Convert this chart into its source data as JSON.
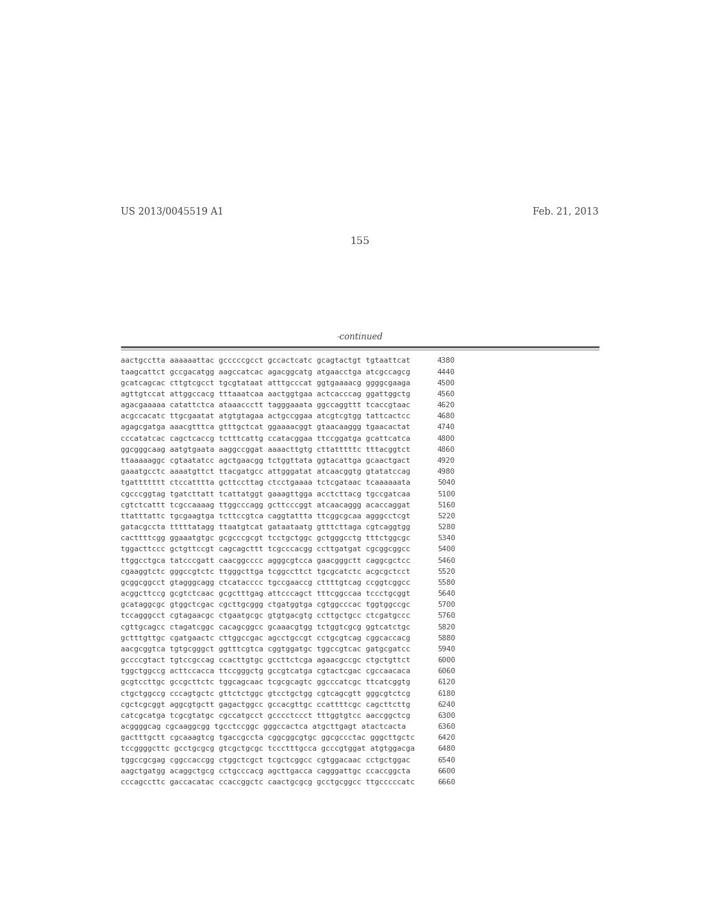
{
  "header_left": "US 2013/0045519 A1",
  "header_right": "Feb. 21, 2013",
  "page_number": "155",
  "continued_label": "-continued",
  "background_color": "#ffffff",
  "text_color": "#444444",
  "sequence_lines": [
    [
      "aactgcctta",
      "aaaaaattac",
      "gcccccgcct",
      "gccactcatc",
      "gcagtactgt",
      "tgtaattcat",
      "4380"
    ],
    [
      "taagcattct",
      "gccgacatgg",
      "aagccatcac",
      "agacggcatg",
      "atgaacctga",
      "atcgccagcg",
      "4440"
    ],
    [
      "gcatcagcac",
      "cttgtcgcct",
      "tgcgtataat",
      "atttgcccat",
      "ggtgaaaacg",
      "ggggcgaaga",
      "4500"
    ],
    [
      "agttgtccat",
      "attggccacg",
      "tttaaatcaa",
      "aactggtgaa",
      "actcacccag",
      "ggattggctg",
      "4560"
    ],
    [
      "agacgaaaaa",
      "catattctca",
      "ataaaccctt",
      "tagggaaata",
      "ggccaggttt",
      "tcaccgtaac",
      "4620"
    ],
    [
      "acgccacatc",
      "ttgcgaatat",
      "atgtgtagaa",
      "actgccggaa",
      "atcgtcgtgg",
      "tattcactcc",
      "4680"
    ],
    [
      "agagcgatga",
      "aaacgtttca",
      "gtttgctcat",
      "ggaaaacggt",
      "gtaacaaggg",
      "tgaacactat",
      "4740"
    ],
    [
      "cccatatcac",
      "cagctcaccg",
      "tctttcattg",
      "ccatacggaa",
      "ttccggatga",
      "gcattcatca",
      "4800"
    ],
    [
      "ggcgggcaag",
      "aatgtgaata",
      "aaggccggat",
      "aaaacttgtg",
      "cttatttttc",
      "tttacggtct",
      "4860"
    ],
    [
      "ttaaaaaggc",
      "cgtaatatcc",
      "agctgaacgg",
      "tctggttata",
      "ggtacattga",
      "gcaactgact",
      "4920"
    ],
    [
      "gaaatgcctc",
      "aaaatgttct",
      "ttacgatgcc",
      "attgggatat",
      "atcaacggtg",
      "gtatatccag",
      "4980"
    ],
    [
      "tgattttttt",
      "ctccatttta",
      "gcttccttag",
      "ctcctgaaaa",
      "tctcgataac",
      "tcaaaaaata",
      "5040"
    ],
    [
      "cgcccggtag",
      "tgatcttatt",
      "tcattatggt",
      "gaaagttgga",
      "acctcttacg",
      "tgccgatcaa",
      "5100"
    ],
    [
      "cgtctcattt",
      "tcgccaaaag",
      "ttggcccagg",
      "gcttcccggt",
      "atcaacaggg",
      "acaccaggat",
      "5160"
    ],
    [
      "ttatttattc",
      "tgcgaagtga",
      "tcttccgtca",
      "caggtattta",
      "ttcggcgcaa",
      "agggcctcgt",
      "5220"
    ],
    [
      "gatacgccta",
      "tttttatagg",
      "ttaatgtcat",
      "gataataatg",
      "gtttcttaga",
      "cgtcaggtgg",
      "5280"
    ],
    [
      "cacttttcgg",
      "ggaaatgtgc",
      "gcgcccgcgt",
      "tcctgctggc",
      "gctgggcctg",
      "tttctggcgc",
      "5340"
    ],
    [
      "tggacttccc",
      "gctgttccgt",
      "cagcagcttt",
      "tcgcccacgg",
      "ccttgatgat",
      "cgcggcggcc",
      "5400"
    ],
    [
      "ttggcctgca",
      "tatcccgatt",
      "caacggcccc",
      "agggcgtcca",
      "gaacgggctt",
      "caggcgctcc",
      "5460"
    ],
    [
      "cgaaggtctc",
      "gggccgtctc",
      "ttgggcttga",
      "tcggccttct",
      "tgcgcatctc",
      "acgcgctcct",
      "5520"
    ],
    [
      "gcggcggcct",
      "gtagggcagg",
      "ctcatacccc",
      "tgccgaaccg",
      "cttttgtcag",
      "ccggtcggcc",
      "5580"
    ],
    [
      "acggcttccg",
      "gcgtctcaac",
      "gcgctttgag",
      "attcccagct",
      "tttcggccaa",
      "tccctgcggt",
      "5640"
    ],
    [
      "gcataggcgc",
      "gtggctcgac",
      "cgcttgcggg",
      "ctgatggtga",
      "cgtggcccac",
      "tggtggccgc",
      "5700"
    ],
    [
      "tccagggcct",
      "cgtagaacgc",
      "ctgaatgcgc",
      "gtgtgacgtg",
      "ccttgctgcc",
      "ctcgatgccc",
      "5760"
    ],
    [
      "cgttgcagcc",
      "ctagatcggc",
      "cacagcggcc",
      "gcaaacgtgg",
      "tctggtcgcg",
      "ggtcatctgc",
      "5820"
    ],
    [
      "gctttgttgc",
      "cgatgaactc",
      "cttggccgac",
      "agcctgccgt",
      "cctgcgtcag",
      "cggcaccacg",
      "5880"
    ],
    [
      "aacgcggtca",
      "tgtgcgggct",
      "ggtttcgtca",
      "cggtggatgc",
      "tggccgtcac",
      "gatgcgatcc",
      "5940"
    ],
    [
      "gccccgtact",
      "tgtccgccag",
      "ccacttgtgc",
      "gccttctcga",
      "agaacgccgc",
      "ctgctgttct",
      "6000"
    ],
    [
      "tggctggccg",
      "acttccacca",
      "ttccgggctg",
      "gccgtcatga",
      "cgtactcgac",
      "cgccaacaca",
      "6060"
    ],
    [
      "gcgtccttgc",
      "gccgcttctc",
      "tggcagcaac",
      "tcgcgcagtc",
      "ggcccatcgc",
      "ttcatcggtg",
      "6120"
    ],
    [
      "ctgctggccg",
      "cccagtgctc",
      "gttctctggc",
      "gtcctgctgg",
      "cgtcagcgtt",
      "gggcgtctcg",
      "6180"
    ],
    [
      "cgctcgcggt",
      "aggcgtgctt",
      "gagactggcc",
      "gccacgttgc",
      "ccattttcgc",
      "cagcttcttg",
      "6240"
    ],
    [
      "catcgcatga",
      "tcgcgtatgc",
      "cgccatgcct",
      "gcccctccct",
      "tttggtgtcc",
      "aaccggctcg",
      "6300"
    ],
    [
      "acggggcag",
      "cgcaaggcgg",
      "tgcctccggc",
      "gggccactca",
      "atgcttgagt",
      "atactcacta",
      "6360"
    ],
    [
      "gactttgctt",
      "cgcaaagtcg",
      "tgaccgccta",
      "cggcggcgtgc",
      "ggcgccctac",
      "gggcttgctc",
      "6420"
    ],
    [
      "tccggggcttc",
      "gcctgcgcg",
      "gtcgctgcgc",
      "tccctttgcca",
      "gcccgtggat",
      "atgtggacga",
      "6480"
    ],
    [
      "tggccgcgag",
      "cggccaccgg",
      "ctggctcgct",
      "tcgctcggcc",
      "cgtggacaac",
      "cctgctggac",
      "6540"
    ],
    [
      "aagctgatgg",
      "acaggctgcg",
      "cctgcccacg",
      "agcttgacca",
      "cagggattgc",
      "ccaccggcta",
      "6600"
    ],
    [
      "cccagccttc",
      "gaccacatac",
      "ccaccggctc",
      "caactgcgcg",
      "gcctgcggcc",
      "ttgcccccatc",
      "6660"
    ]
  ]
}
